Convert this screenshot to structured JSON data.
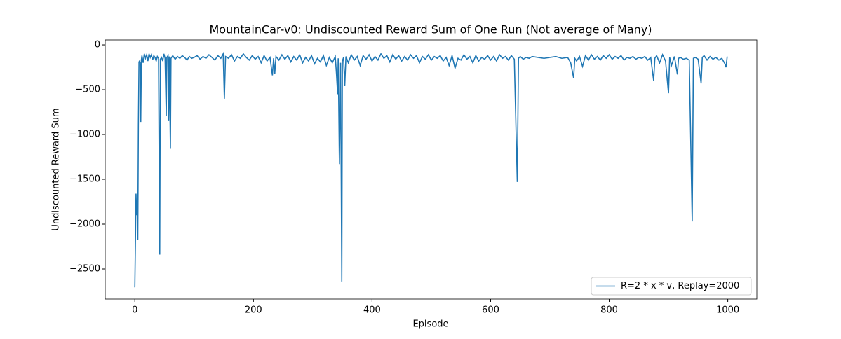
{
  "chart_data": {
    "type": "line",
    "title": "MountainCar-v0: Undiscounted Reward Sum of One Run (Not average of Many)",
    "x_label": "Episode",
    "y_label": "Undiscounted Reward Sum",
    "x": [
      0,
      1,
      2,
      3,
      4,
      5,
      6,
      7,
      8,
      9,
      10,
      11,
      12,
      14,
      16,
      18,
      20,
      22,
      24,
      26,
      28,
      30,
      32,
      34,
      36,
      38,
      40,
      42,
      43,
      45,
      47,
      49,
      51,
      53,
      54,
      56,
      57,
      58,
      60,
      61,
      64,
      68,
      72,
      76,
      80,
      84,
      88,
      92,
      96,
      100,
      105,
      110,
      115,
      120,
      125,
      130,
      135,
      140,
      145,
      149,
      151,
      153,
      158,
      163,
      168,
      173,
      178,
      183,
      188,
      193,
      198,
      203,
      208,
      213,
      218,
      223,
      228,
      232,
      234,
      236,
      238,
      243,
      248,
      253,
      258,
      263,
      268,
      273,
      278,
      283,
      288,
      293,
      298,
      303,
      308,
      313,
      318,
      323,
      328,
      333,
      338,
      340,
      342,
      343,
      345,
      347,
      349,
      350,
      352,
      354,
      356,
      360,
      365,
      370,
      375,
      380,
      385,
      390,
      395,
      400,
      405,
      410,
      415,
      420,
      425,
      430,
      435,
      440,
      445,
      450,
      455,
      460,
      465,
      470,
      475,
      480,
      485,
      490,
      495,
      500,
      505,
      510,
      515,
      520,
      525,
      530,
      535,
      540,
      545,
      550,
      555,
      560,
      565,
      570,
      575,
      580,
      585,
      590,
      595,
      600,
      605,
      610,
      615,
      620,
      625,
      630,
      635,
      640,
      645,
      647,
      650,
      655,
      660,
      665,
      670,
      680,
      690,
      700,
      710,
      720,
      730,
      735,
      740,
      742,
      745,
      750,
      755,
      760,
      765,
      770,
      775,
      780,
      785,
      790,
      795,
      800,
      805,
      810,
      815,
      820,
      825,
      830,
      835,
      840,
      845,
      850,
      855,
      860,
      865,
      870,
      875,
      877,
      880,
      885,
      890,
      895,
      900,
      902,
      905,
      910,
      915,
      917,
      920,
      925,
      930,
      935,
      940,
      942,
      945,
      950,
      955,
      957,
      960,
      965,
      970,
      975,
      980,
      985,
      990,
      995,
      997,
      999
    ],
    "series": [
      {
        "name": "R=2 * x * v, Replay=2000",
        "color": "#1f77b4",
        "values": [
          -2705,
          -2200,
          -1660,
          -1900,
          -1770,
          -2180,
          -900,
          -190,
          -180,
          -200,
          -860,
          -170,
          -120,
          -200,
          -100,
          -150,
          -110,
          -180,
          -100,
          -140,
          -110,
          -170,
          -120,
          -140,
          -180,
          -130,
          -150,
          -2340,
          -160,
          -140,
          -180,
          -100,
          -150,
          -790,
          -140,
          -120,
          -850,
          -130,
          -1160,
          -150,
          -120,
          -160,
          -130,
          -150,
          -120,
          -140,
          -170,
          -130,
          -150,
          -140,
          -120,
          -160,
          -130,
          -150,
          -110,
          -140,
          -170,
          -120,
          -150,
          -100,
          -600,
          -130,
          -150,
          -110,
          -180,
          -130,
          -150,
          -100,
          -140,
          -170,
          -120,
          -160,
          -130,
          -200,
          -120,
          -180,
          -140,
          -340,
          -150,
          -320,
          -130,
          -170,
          -110,
          -160,
          -120,
          -190,
          -130,
          -170,
          -110,
          -200,
          -140,
          -180,
          -120,
          -210,
          -150,
          -190,
          -120,
          -230,
          -140,
          -200,
          -130,
          -320,
          -550,
          -150,
          -1330,
          -200,
          -2640,
          -180,
          -140,
          -460,
          -130,
          -200,
          -110,
          -170,
          -130,
          -230,
          -120,
          -160,
          -110,
          -180,
          -130,
          -170,
          -100,
          -150,
          -120,
          -190,
          -110,
          -160,
          -120,
          -180,
          -130,
          -170,
          -110,
          -150,
          -120,
          -200,
          -130,
          -160,
          -110,
          -170,
          -130,
          -150,
          -120,
          -180,
          -140,
          -230,
          -120,
          -260,
          -150,
          -170,
          -110,
          -160,
          -130,
          -200,
          -120,
          -180,
          -140,
          -160,
          -120,
          -170,
          -130,
          -180,
          -110,
          -150,
          -130,
          -170,
          -120,
          -160,
          -1530,
          -150,
          -130,
          -160,
          -140,
          -150,
          -130,
          -140,
          -150,
          -140,
          -130,
          -150,
          -140,
          -200,
          -370,
          -150,
          -180,
          -130,
          -240,
          -120,
          -170,
          -110,
          -160,
          -130,
          -170,
          -120,
          -150,
          -110,
          -160,
          -130,
          -150,
          -120,
          -170,
          -140,
          -150,
          -130,
          -160,
          -140,
          -150,
          -130,
          -170,
          -140,
          -400,
          -150,
          -120,
          -200,
          -110,
          -180,
          -540,
          -140,
          -230,
          -130,
          -330,
          -150,
          -140,
          -160,
          -150,
          -170,
          -1970,
          -150,
          -140,
          -160,
          -430,
          -140,
          -120,
          -170,
          -130,
          -160,
          -140,
          -170,
          -150,
          -210,
          -250,
          -130
        ]
      }
    ],
    "xlim": [
      -49.95,
      1048.95
    ],
    "xticks": [
      0,
      200,
      400,
      600,
      800,
      1000
    ],
    "ylim": [
      -2836,
      55
    ],
    "yticks": [
      {
        "value": -2500,
        "label": "−2500"
      },
      {
        "value": -2000,
        "label": "−2000"
      },
      {
        "value": -1500,
        "label": "−1500"
      },
      {
        "value": -1000,
        "label": "−1000"
      },
      {
        "value": -500,
        "label": "−500"
      },
      0
    ],
    "legend": "lower right"
  }
}
